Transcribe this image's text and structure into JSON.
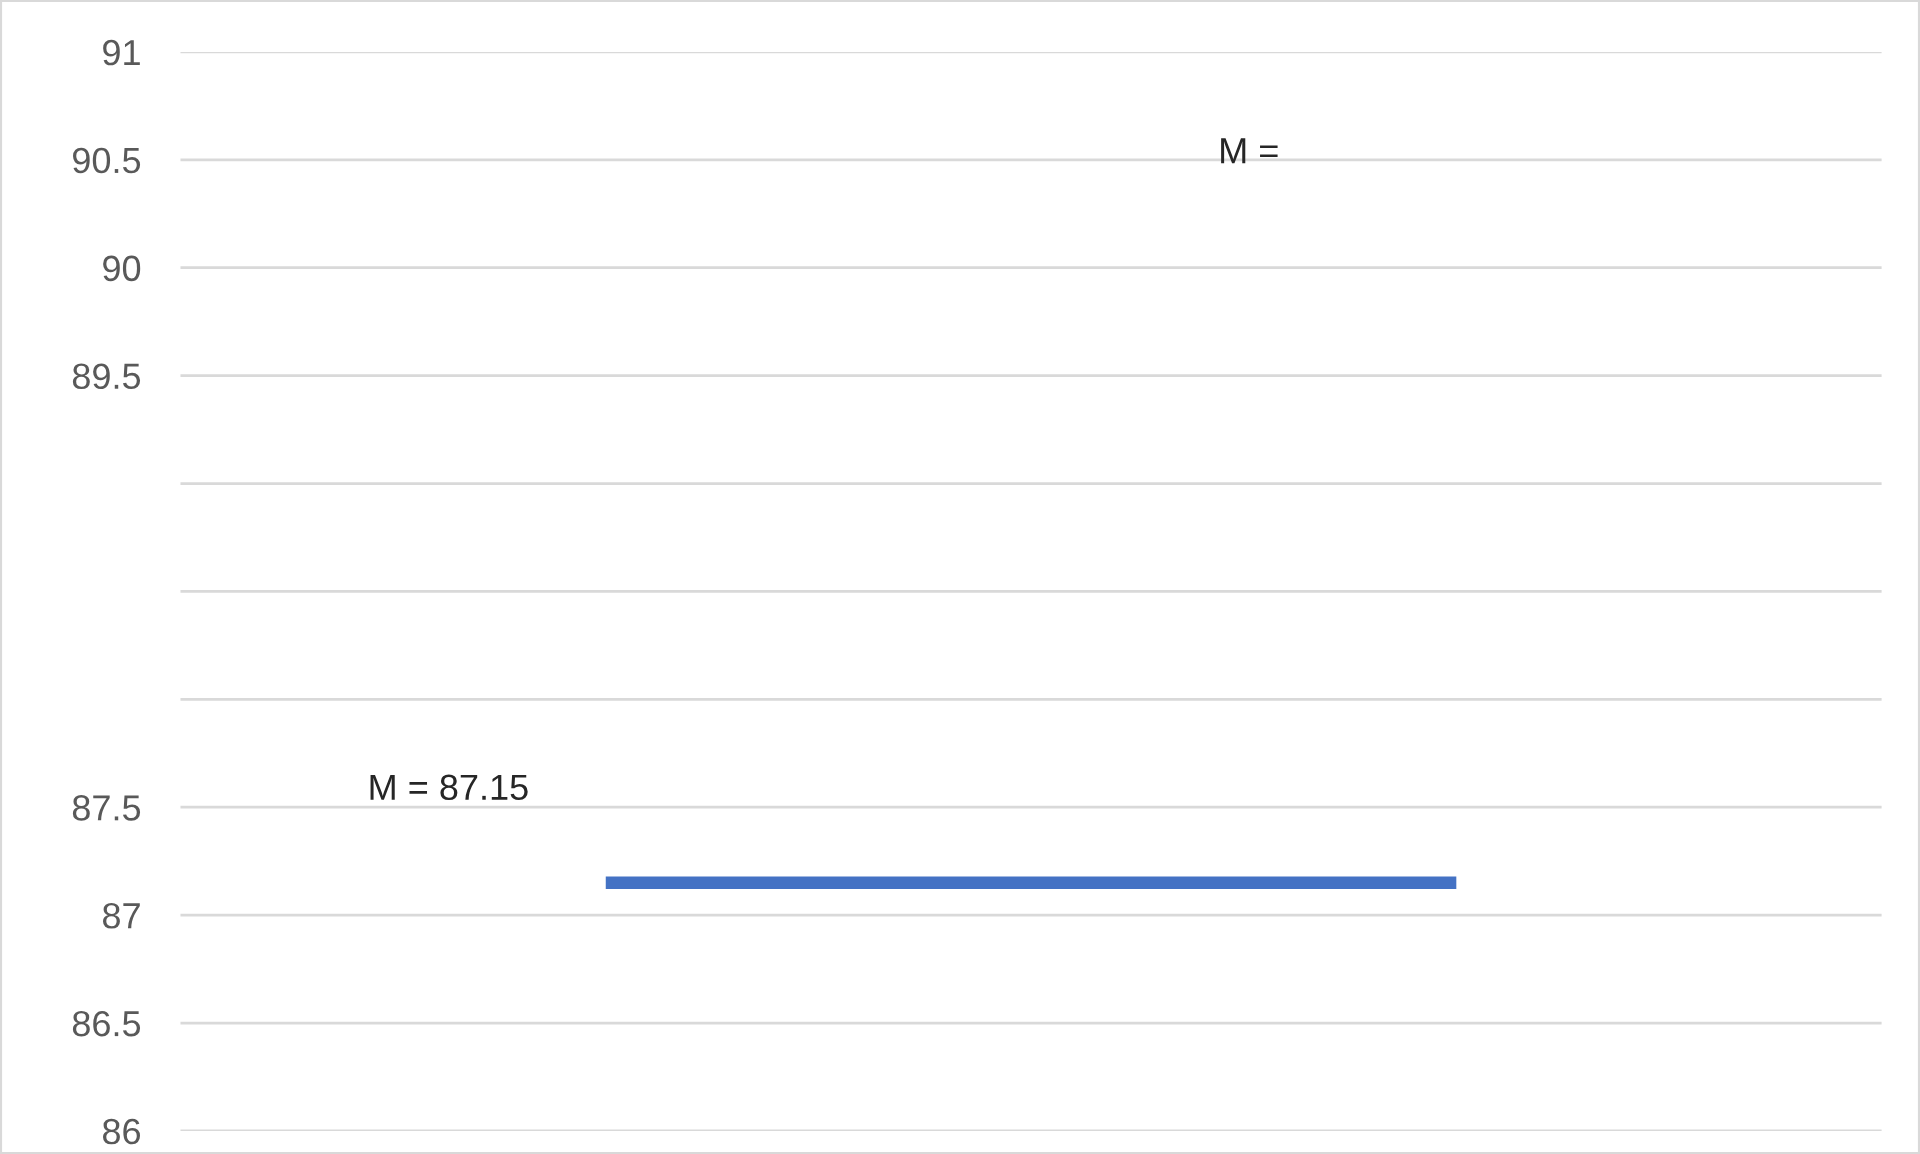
{
  "chart_data": {
    "type": "line",
    "categories": [
      null,
      null
    ],
    "series": [
      {
        "color": "#4472c4",
        "values": [
          87.15,
          87.15
        ]
      }
    ],
    "ylim": [
      86,
      91
    ],
    "yticks": [
      86,
      86.5,
      87,
      87.5,
      {
        "value": 88,
        "label": null
      },
      {
        "value": 88.5,
        "label": null
      },
      {
        "value": 89,
        "label": null
      },
      89.5,
      90,
      90.5,
      91
    ],
    "grid": "y",
    "marker": "none",
    "line_style": "solid",
    "annotations": [
      "M = 87.15",
      "M ="
    ]
  }
}
